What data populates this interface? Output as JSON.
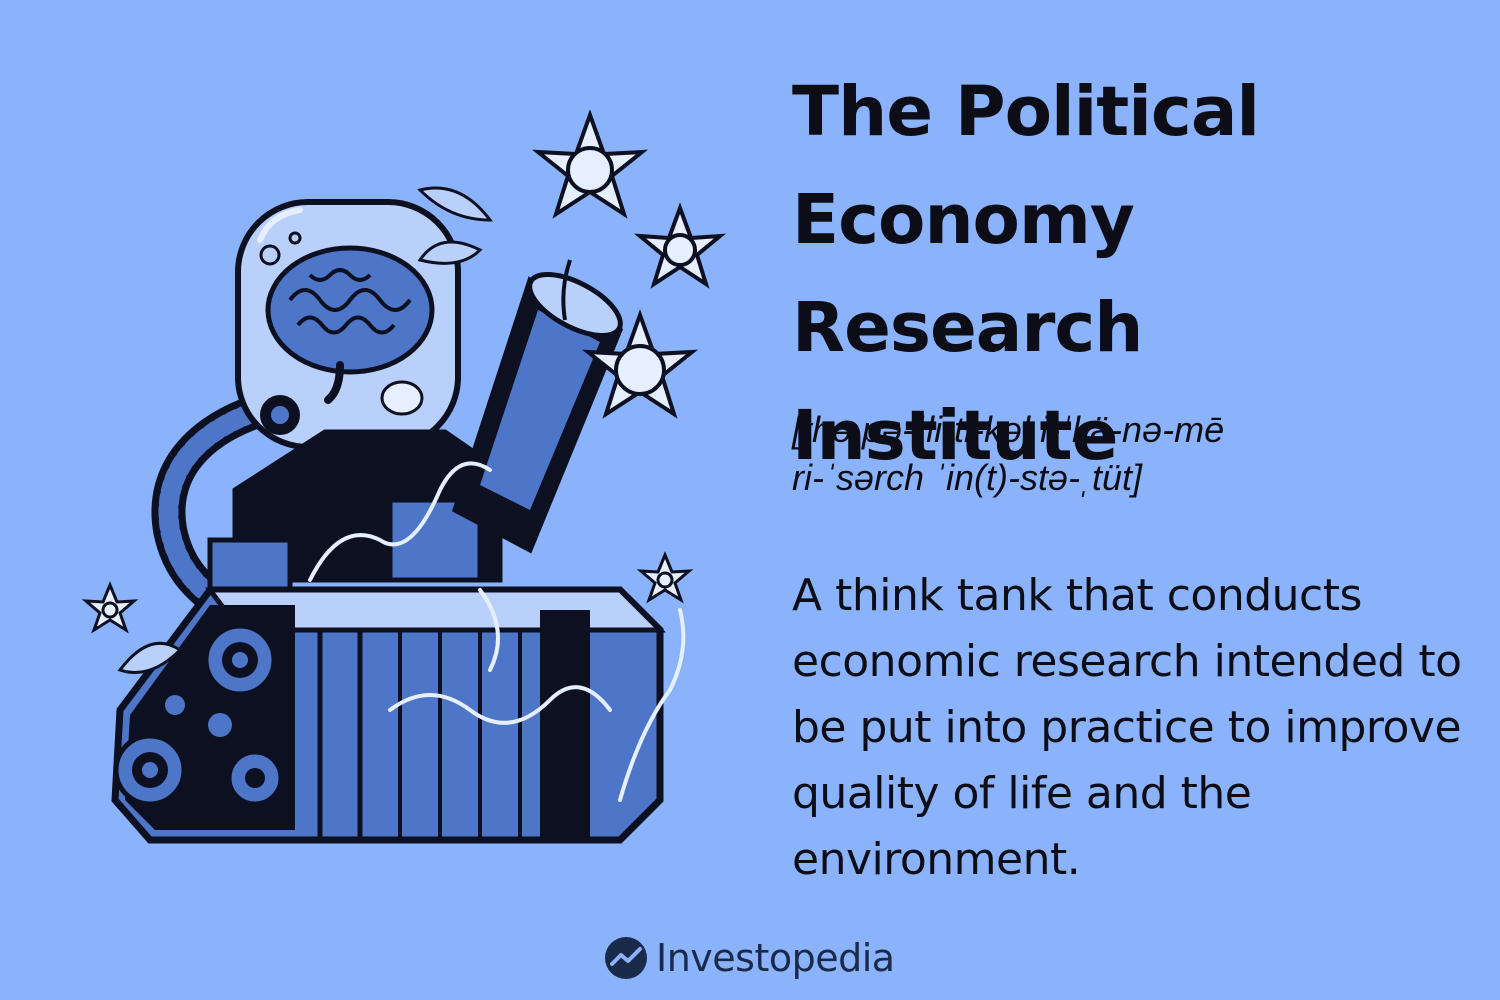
{
  "title": "The Political Economy Research Institute",
  "pronunciation_line1": "[thə pə-ˈli-ti-kəl i-ˈkä-nə-mē",
  "pronunciation_line2": "ri-ˈsərch ˈin(t)-stə-ˌtüt]",
  "definition": "A think tank that conducts economic research intended to be put into practice to improve quality of life and the environment.",
  "brand": {
    "name": "Investopedia",
    "icon": "investopedia-logo-icon"
  },
  "colors": {
    "background": "#8bb3fb",
    "text": "#0d0d18",
    "ink": "#0c1020",
    "mid_blue": "#4d75c8",
    "light_blue": "#b9d0fb",
    "pale": "#e6efff"
  }
}
